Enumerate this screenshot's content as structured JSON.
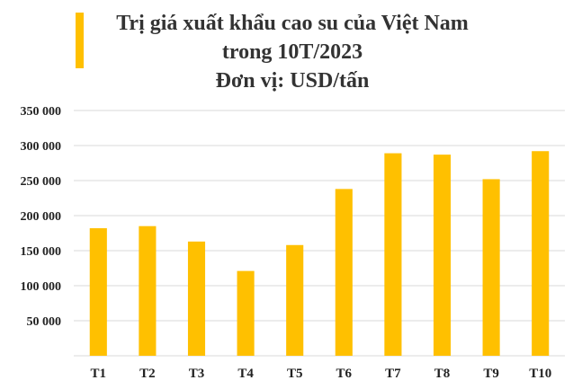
{
  "chart_data": {
    "type": "bar",
    "title_lines": [
      "Trị giá xuất khẩu cao su của Việt Nam",
      "trong 10T/2023",
      "Đơn vị: USD/tấn"
    ],
    "categories": [
      "T1",
      "T2",
      "T3",
      "T4",
      "T5",
      "T6",
      "T7",
      "T8",
      "T9",
      "T10"
    ],
    "values": [
      182000,
      185000,
      163000,
      121000,
      158000,
      238000,
      289000,
      287000,
      252000,
      292000
    ],
    "ylim": [
      0,
      350000
    ],
    "yticks": [
      50000,
      100000,
      150000,
      200000,
      250000,
      300000,
      350000
    ],
    "ytick_labels": [
      "50 000",
      "100 000",
      "150 000",
      "200 000",
      "250 000",
      "300 000",
      "350 000"
    ],
    "grid": true,
    "legend": "none",
    "bar_color": "#FFC000",
    "grid_color": "#D9D9D9"
  }
}
